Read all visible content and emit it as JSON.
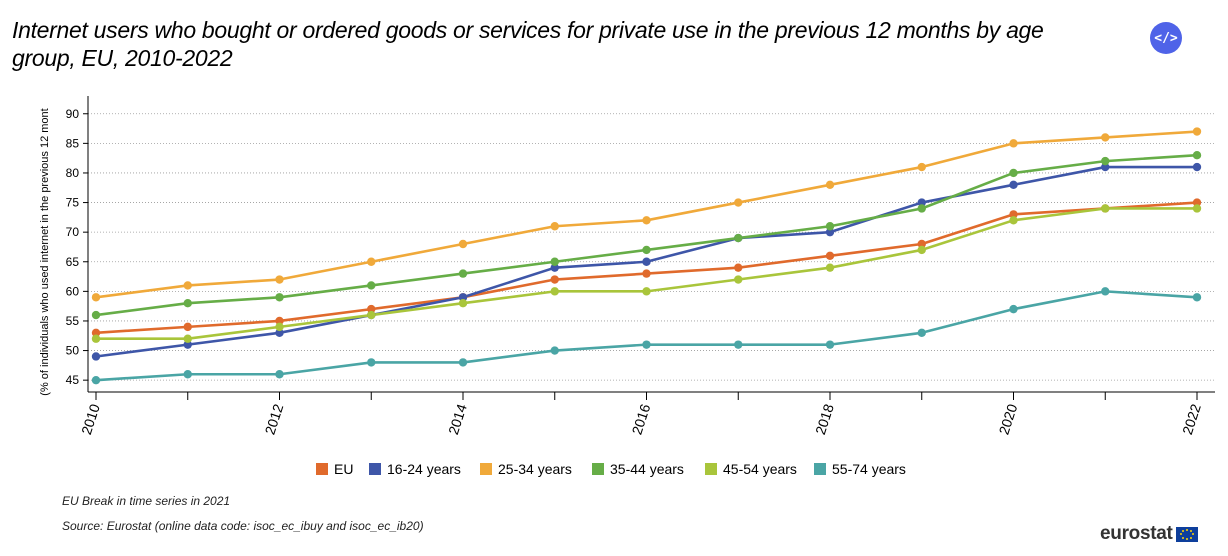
{
  "header": {
    "title": "Internet users who bought or ordered goods or services for private use in the previous 12 months by age group, EU, 2010-2022",
    "embed_label": "</>"
  },
  "footer": {
    "note": "EU Break in time series in 2021",
    "source": "Source: Eurostat (online data code: isoc_ec_ibuy and isoc_ec_ib20)",
    "logo_text": "eurostat"
  },
  "chart_data": {
    "type": "line",
    "x": [
      2010,
      2011,
      2012,
      2013,
      2014,
      2015,
      2016,
      2017,
      2018,
      2019,
      2020,
      2021,
      2022
    ],
    "xticks": [
      "2010",
      "2012",
      "2014",
      "2016",
      "2018",
      "2020",
      "2022"
    ],
    "xlim": [
      2010,
      2022
    ],
    "ylim": [
      43,
      93
    ],
    "yticks": [
      45,
      50,
      55,
      60,
      65,
      70,
      75,
      80,
      85,
      90
    ],
    "ylabel": "(% of individuals who used internet in the previous 12 mont",
    "xlabel": "",
    "grid": "horizontal-dotted",
    "legend_position": "bottom",
    "series": [
      {
        "name": "EU",
        "color": "#e06a2c",
        "values": [
          53,
          54,
          55,
          57,
          59,
          62,
          63,
          64,
          66,
          68,
          73,
          74,
          75
        ]
      },
      {
        "name": "16-24 years",
        "color": "#3e56a8",
        "values": [
          49,
          51,
          53,
          56,
          59,
          64,
          65,
          69,
          70,
          75,
          78,
          81,
          81
        ]
      },
      {
        "name": "25-34 years",
        "color": "#f0a93a",
        "values": [
          59,
          61,
          62,
          65,
          68,
          71,
          72,
          75,
          78,
          81,
          85,
          86,
          87
        ]
      },
      {
        "name": "35-44 years",
        "color": "#66ad47",
        "values": [
          56,
          58,
          59,
          61,
          63,
          65,
          67,
          69,
          71,
          74,
          80,
          82,
          83
        ]
      },
      {
        "name": "45-54 years",
        "color": "#a9c53b",
        "values": [
          52,
          52,
          54,
          56,
          58,
          60,
          60,
          62,
          64,
          67,
          72,
          74,
          74
        ]
      },
      {
        "name": "55-74 years",
        "color": "#4aa5a5",
        "values": [
          45,
          46,
          46,
          48,
          48,
          50,
          51,
          51,
          51,
          53,
          57,
          60,
          59
        ]
      }
    ]
  }
}
